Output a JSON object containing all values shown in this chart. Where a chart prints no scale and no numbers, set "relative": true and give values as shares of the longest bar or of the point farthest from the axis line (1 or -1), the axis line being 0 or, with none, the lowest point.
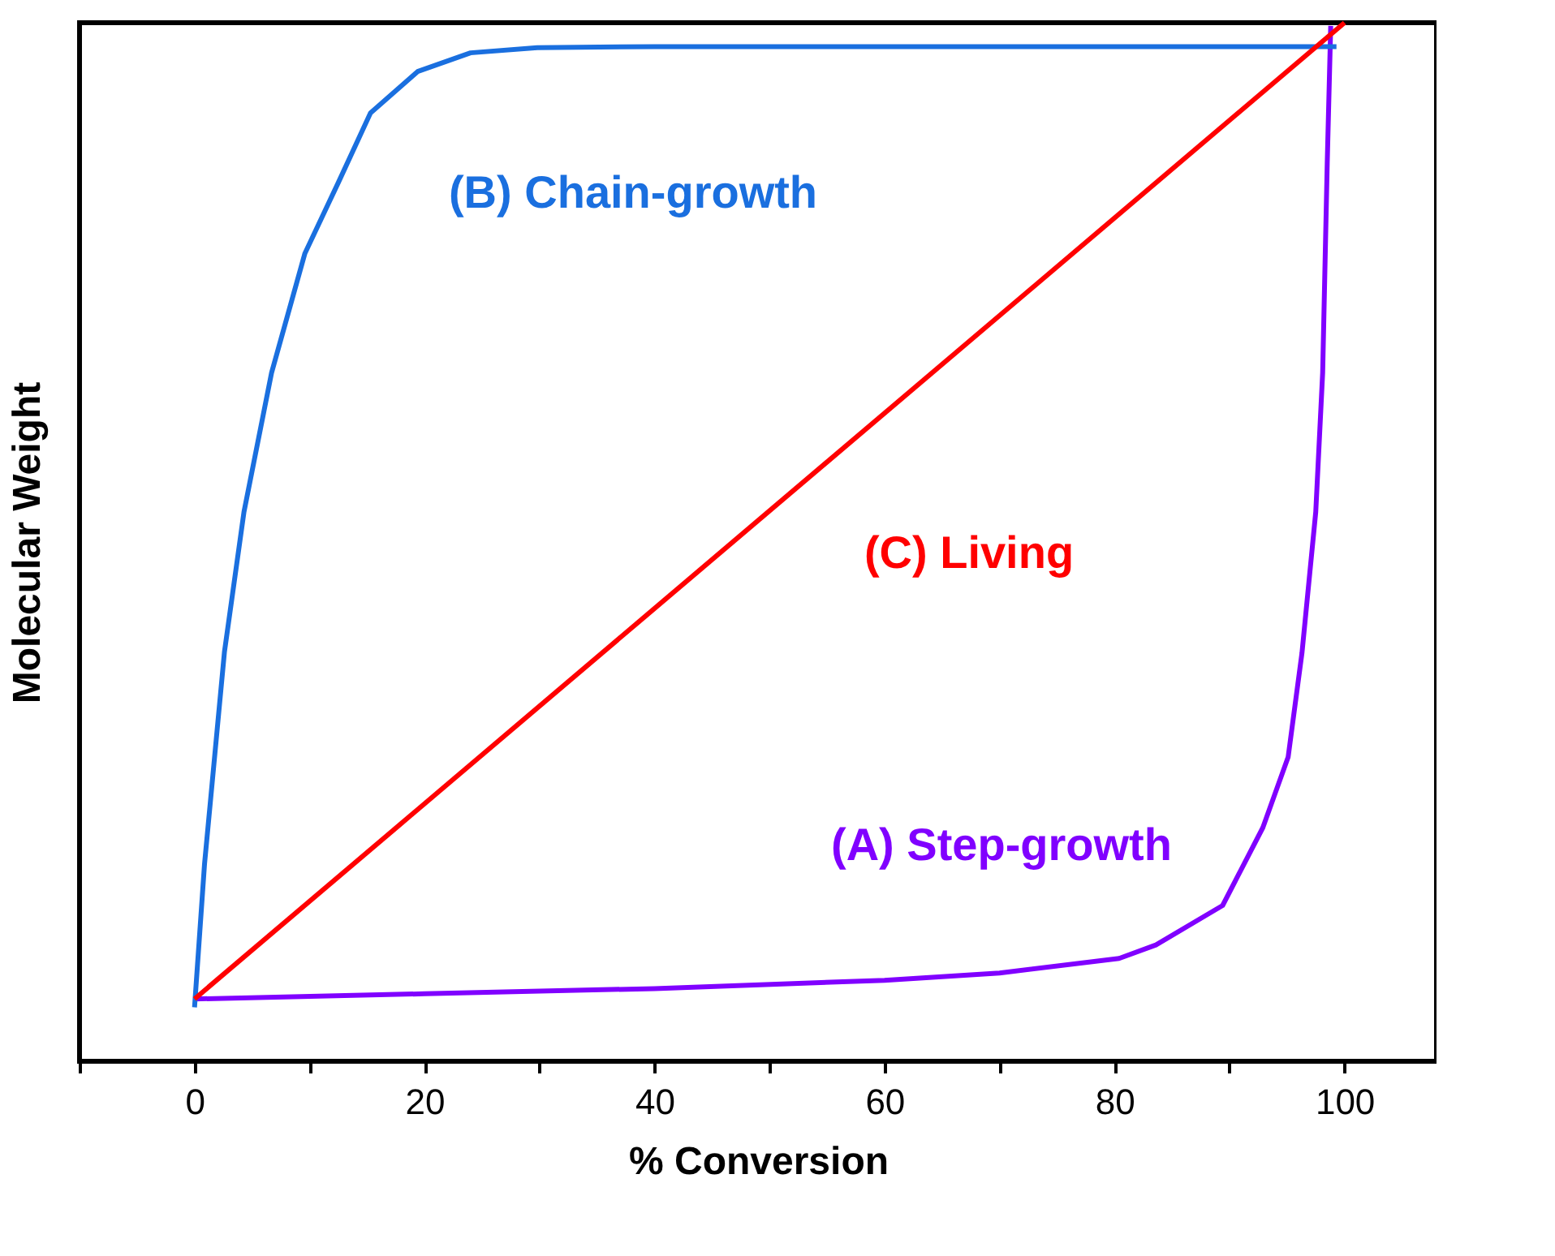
{
  "chart_data": {
    "type": "line",
    "relative": true,
    "xlabel": "% Conversion",
    "ylabel": "Molecular Weight",
    "xlim": [
      -10,
      108
    ],
    "xticks": [
      {
        "value": -10,
        "label": null
      },
      0,
      {
        "value": 10,
        "label": null
      },
      20,
      {
        "value": 30,
        "label": null
      },
      40,
      {
        "value": 50,
        "label": null
      },
      60,
      {
        "value": 70,
        "label": null
      },
      80,
      {
        "value": 90,
        "label": null
      },
      100
    ],
    "grid": false,
    "marker": "none",
    "line_style": "solid",
    "series": [
      {
        "name": "(A) Step-growth",
        "color": "#8000ff",
        "x": [
          0,
          20,
          40,
          60,
          70,
          80.4,
          83.6,
          89.4,
          92.9,
          95.1,
          96.3,
          97.5,
          98.1,
          98.5,
          98.8
        ],
        "values": [
          0.06,
          0.065,
          0.07,
          0.078,
          0.085,
          0.099,
          0.112,
          0.15,
          0.225,
          0.293,
          0.393,
          0.529,
          0.663,
          0.866,
          0.997
        ]
      },
      {
        "name": "(B) Chain-growth",
        "color": "#1a6fdf",
        "x": [
          0,
          0.87,
          2.6,
          4.3,
          6.7,
          9.6,
          12.5,
          15.3,
          19.4,
          24,
          29.8,
          40,
          99.3
        ],
        "values": [
          0.052,
          0.19,
          0.394,
          0.529,
          0.663,
          0.778,
          0.846,
          0.913,
          0.953,
          0.971,
          0.976,
          0.977,
          0.977
        ]
      },
      {
        "name": "(C) Living",
        "color": "#ff0000",
        "x": [
          0,
          100
        ],
        "values": [
          0.06,
          1.0
        ]
      }
    ]
  }
}
